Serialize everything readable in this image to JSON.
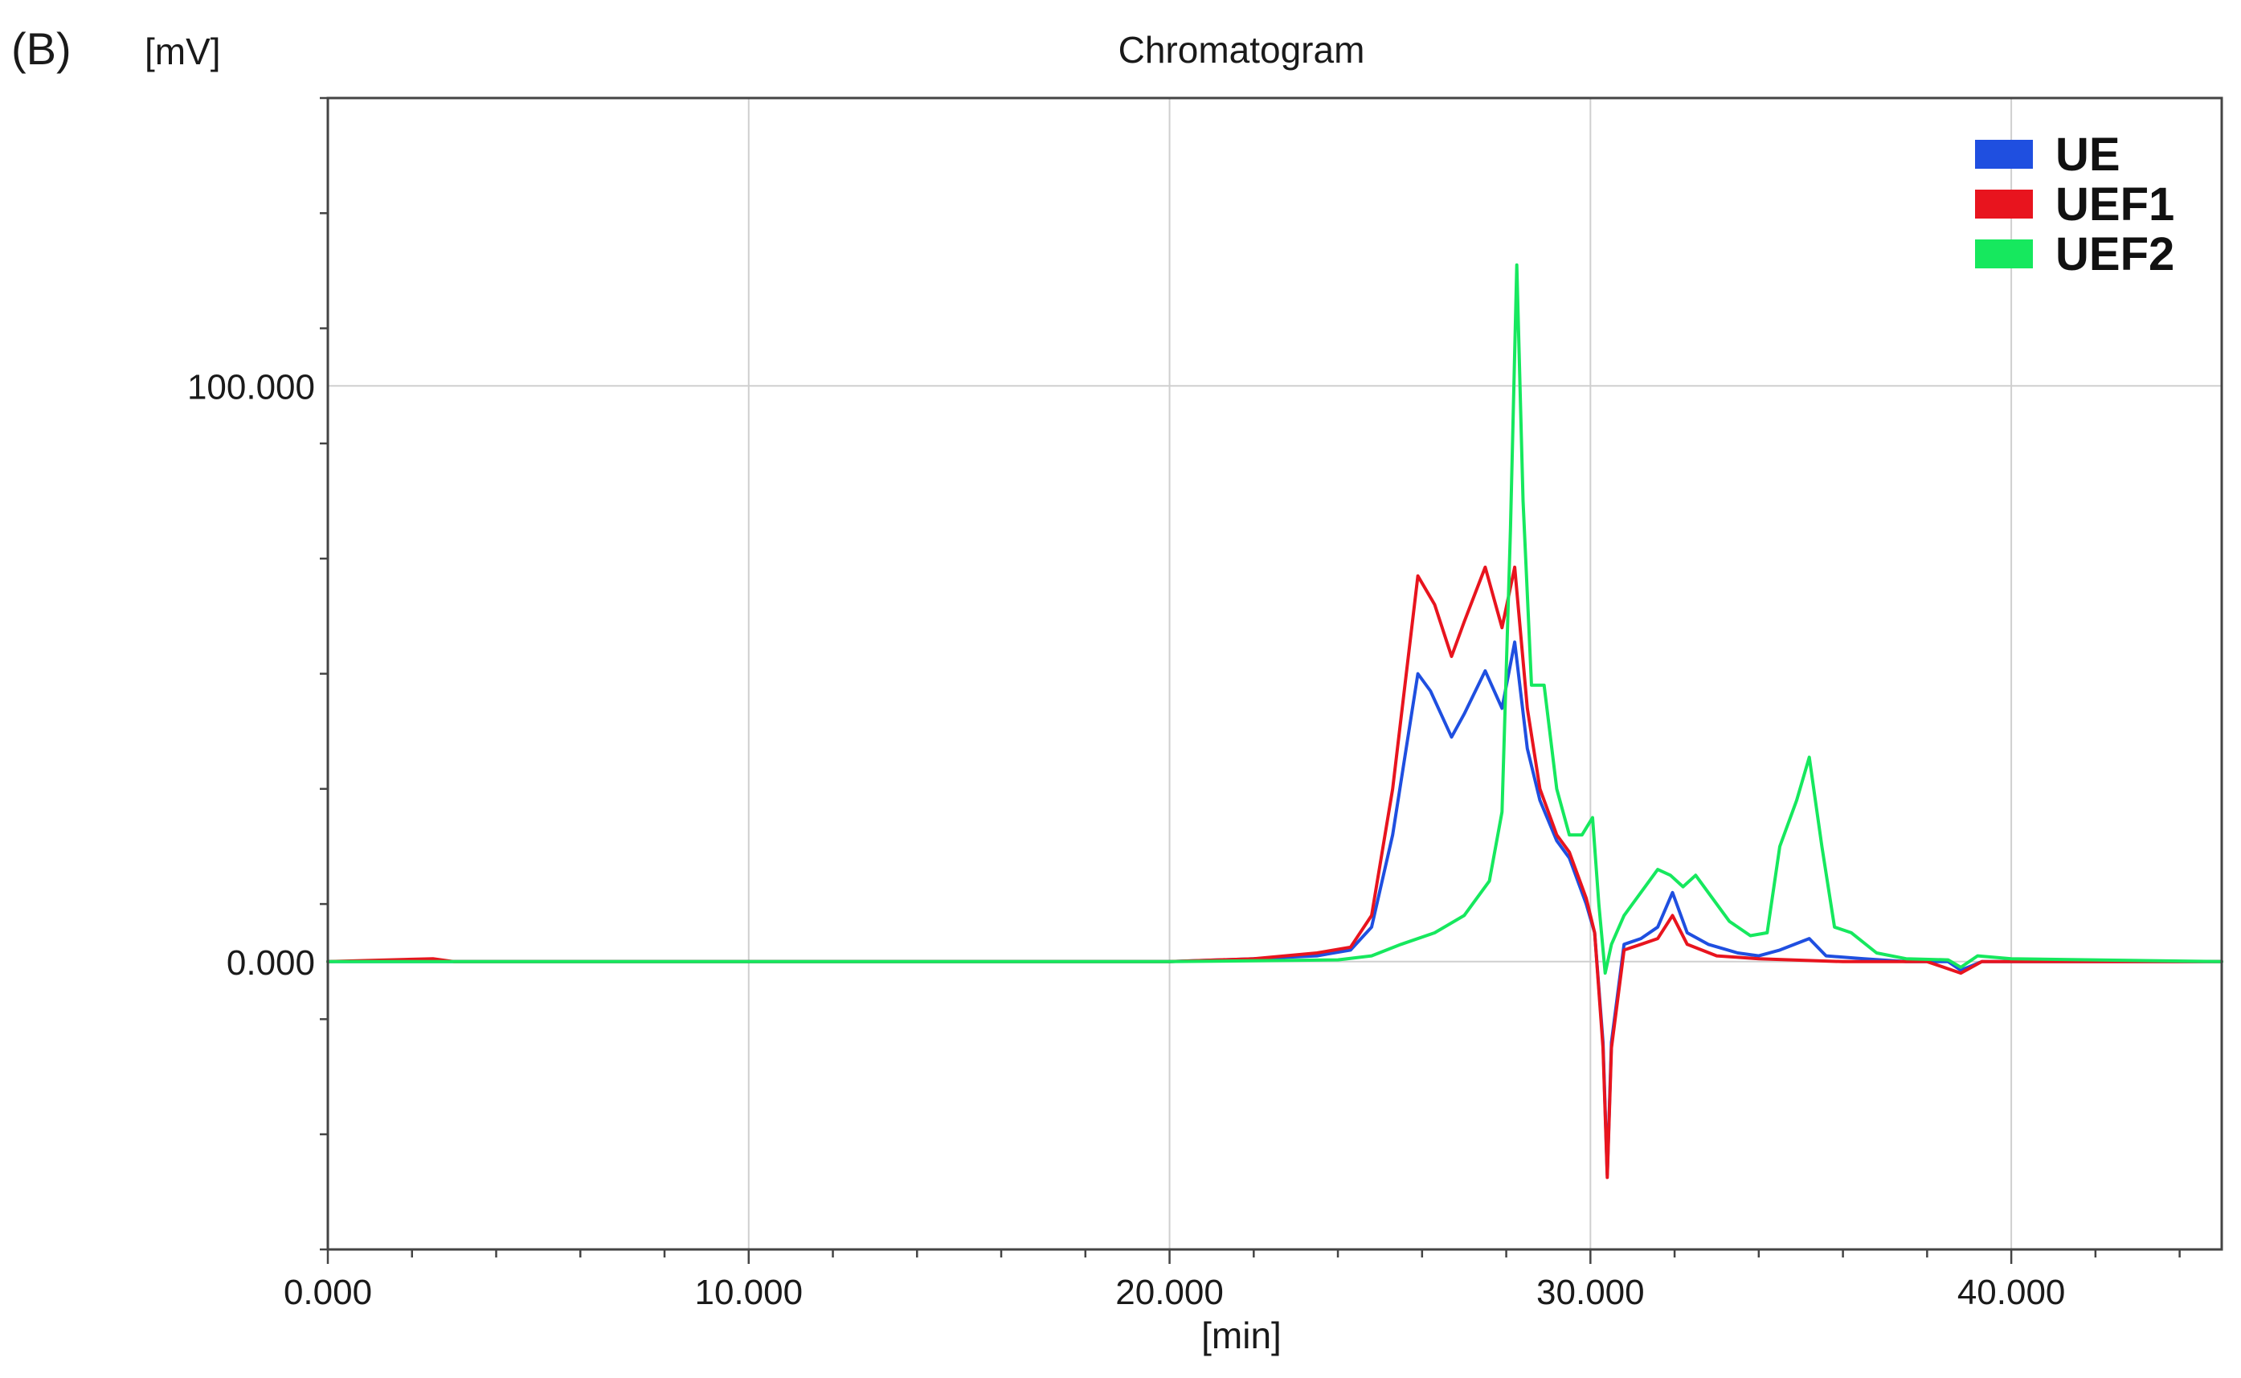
{
  "panel_label": "(B)",
  "chart_data": {
    "type": "line",
    "title": "Chromatogram",
    "xlabel": "[min]",
    "ylabel": "[mV]",
    "xlim": [
      0,
      45
    ],
    "ylim": [
      -50,
      150
    ],
    "x_ticks": [
      0,
      10,
      20,
      30,
      40
    ],
    "x_tick_labels": [
      "0.000",
      "10.000",
      "20.000",
      "30.000",
      "40.000"
    ],
    "y_ticks": [
      0,
      100
    ],
    "y_tick_labels": [
      "0.000",
      "100.000"
    ],
    "grid": true,
    "legend_position": "top-right",
    "series": [
      {
        "name": "UE",
        "color": "#1f4fe0",
        "points": [
          [
            0,
            0
          ],
          [
            5,
            0
          ],
          [
            10,
            0
          ],
          [
            15,
            0
          ],
          [
            20,
            0
          ],
          [
            22,
            0.5
          ],
          [
            23.5,
            1
          ],
          [
            24.3,
            2
          ],
          [
            24.8,
            6
          ],
          [
            25.3,
            22
          ],
          [
            25.9,
            50
          ],
          [
            26.2,
            47
          ],
          [
            26.7,
            39
          ],
          [
            27,
            43
          ],
          [
            27.5,
            50.5
          ],
          [
            27.9,
            44
          ],
          [
            28.2,
            55.5
          ],
          [
            28.5,
            37
          ],
          [
            28.8,
            28
          ],
          [
            29.2,
            21
          ],
          [
            29.5,
            18
          ],
          [
            29.9,
            10
          ],
          [
            30.1,
            5
          ],
          [
            30.3,
            -14
          ],
          [
            30.4,
            -37
          ],
          [
            30.5,
            -14
          ],
          [
            30.8,
            3
          ],
          [
            31.2,
            4
          ],
          [
            31.6,
            6
          ],
          [
            31.95,
            12
          ],
          [
            32.3,
            5
          ],
          [
            32.8,
            3
          ],
          [
            33.5,
            1.5
          ],
          [
            34,
            1
          ],
          [
            34.5,
            2
          ],
          [
            35.2,
            4
          ],
          [
            35.6,
            1
          ],
          [
            36.5,
            0.5
          ],
          [
            37.5,
            0
          ],
          [
            38.5,
            0
          ],
          [
            38.8,
            -1.5
          ],
          [
            39.3,
            0
          ],
          [
            40,
            0
          ],
          [
            45,
            0
          ]
        ]
      },
      {
        "name": "UEF1",
        "color": "#e8141e",
        "points": [
          [
            0,
            0
          ],
          [
            2.5,
            0.5
          ],
          [
            3,
            0
          ],
          [
            5,
            0
          ],
          [
            10,
            0
          ],
          [
            15,
            0
          ],
          [
            20,
            0
          ],
          [
            22,
            0.5
          ],
          [
            23.5,
            1.5
          ],
          [
            24.3,
            2.5
          ],
          [
            24.8,
            8
          ],
          [
            25.3,
            30
          ],
          [
            25.9,
            67
          ],
          [
            26.3,
            62
          ],
          [
            26.7,
            53
          ],
          [
            27,
            59
          ],
          [
            27.5,
            68.5
          ],
          [
            27.9,
            58
          ],
          [
            28.2,
            68.5
          ],
          [
            28.5,
            44
          ],
          [
            28.8,
            30
          ],
          [
            29.2,
            22
          ],
          [
            29.5,
            19
          ],
          [
            29.9,
            11
          ],
          [
            30.1,
            5
          ],
          [
            30.3,
            -15
          ],
          [
            30.4,
            -37.5
          ],
          [
            30.5,
            -15
          ],
          [
            30.8,
            2
          ],
          [
            31.2,
            3
          ],
          [
            31.6,
            4
          ],
          [
            31.95,
            8
          ],
          [
            32.3,
            3
          ],
          [
            33,
            1
          ],
          [
            34,
            0.5
          ],
          [
            36,
            0
          ],
          [
            38,
            0
          ],
          [
            38.8,
            -2
          ],
          [
            39.3,
            0
          ],
          [
            40,
            0
          ],
          [
            45,
            0
          ]
        ]
      },
      {
        "name": "UEF2",
        "color": "#16e85e",
        "points": [
          [
            0,
            0
          ],
          [
            5,
            0
          ],
          [
            10,
            0
          ],
          [
            15,
            0
          ],
          [
            20,
            0
          ],
          [
            24,
            0.3
          ],
          [
            24.8,
            1
          ],
          [
            25.5,
            3
          ],
          [
            26.3,
            5
          ],
          [
            27,
            8
          ],
          [
            27.6,
            14
          ],
          [
            27.9,
            26
          ],
          [
            28.1,
            75
          ],
          [
            28.25,
            121
          ],
          [
            28.4,
            80
          ],
          [
            28.6,
            48
          ],
          [
            28.9,
            48
          ],
          [
            29.2,
            30
          ],
          [
            29.5,
            22
          ],
          [
            29.8,
            22
          ],
          [
            30.05,
            25
          ],
          [
            30.2,
            10
          ],
          [
            30.35,
            -2
          ],
          [
            30.5,
            3
          ],
          [
            30.8,
            8
          ],
          [
            31.3,
            13
          ],
          [
            31.6,
            16
          ],
          [
            31.9,
            15
          ],
          [
            32.2,
            13
          ],
          [
            32.5,
            15
          ],
          [
            32.8,
            12
          ],
          [
            33.3,
            7
          ],
          [
            33.8,
            4.5
          ],
          [
            34.2,
            5
          ],
          [
            34.5,
            20
          ],
          [
            34.9,
            28
          ],
          [
            35.2,
            35.5
          ],
          [
            35.5,
            20
          ],
          [
            35.8,
            6
          ],
          [
            36.2,
            5
          ],
          [
            36.8,
            1.5
          ],
          [
            37.5,
            0.5
          ],
          [
            38.5,
            0.3
          ],
          [
            38.8,
            -1
          ],
          [
            39.2,
            1
          ],
          [
            40,
            0.5
          ],
          [
            45,
            0
          ]
        ]
      }
    ]
  }
}
